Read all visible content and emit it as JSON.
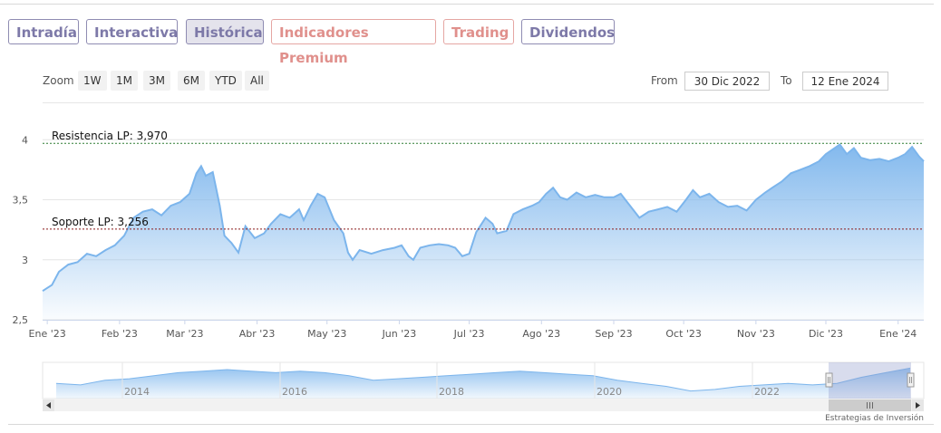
{
  "tabs": [
    {
      "label": "Intradía",
      "style": "normal"
    },
    {
      "label": "Interactiva",
      "style": "normal"
    },
    {
      "label": "Histórica",
      "style": "active"
    },
    {
      "label": "Indicadores Premium",
      "style": "premium"
    },
    {
      "label": "Trading",
      "style": "premium"
    },
    {
      "label": "Dividendos",
      "style": "normal"
    }
  ],
  "zoom": {
    "label": "Zoom",
    "buttons": [
      "1W",
      "1M",
      "3M",
      "6M",
      "YTD",
      "All"
    ]
  },
  "range": {
    "from_label": "From",
    "from_value": "30 Dic 2022",
    "to_label": "To",
    "to_value": "12 Ene 2024"
  },
  "colors": {
    "line": "#7cb5ec",
    "area_top": "#7cb5ec",
    "resistance": "#2e7d32",
    "support": "#8b1a1a",
    "tab_border": "#8f8cb2",
    "tab_premium": "#e0908c"
  },
  "chart_data": {
    "type": "area",
    "title": "",
    "ylim": [
      2.5,
      4.1
    ],
    "y_ticks": [
      "4",
      "3,5",
      "3",
      "2,5"
    ],
    "y_tick_values": [
      4,
      3.5,
      3,
      2.5
    ],
    "x_ticks": [
      "Ene '23",
      "Feb '23",
      "Mar '23",
      "Abr '23",
      "May '23",
      "Jun '23",
      "Jul '23",
      "Ago '23",
      "Sep '23",
      "Oct '23",
      "Nov '23",
      "Dic '23",
      "Ene '24"
    ],
    "x_tick_dates": [
      "2023-01-01",
      "2023-02-01",
      "2023-03-01",
      "2023-04-01",
      "2023-05-01",
      "2023-06-01",
      "2023-07-01",
      "2023-08-01",
      "2023-09-01",
      "2023-10-01",
      "2023-11-01",
      "2023-12-01",
      "2024-01-01"
    ],
    "xlim": [
      "2022-12-30",
      "2024-01-12"
    ],
    "series": [
      {
        "values": [
          [
            "2022-12-30",
            2.74
          ],
          [
            "2023-01-03",
            2.79
          ],
          [
            "2023-01-06",
            2.9
          ],
          [
            "2023-01-10",
            2.96
          ],
          [
            "2023-01-14",
            2.98
          ],
          [
            "2023-01-18",
            3.05
          ],
          [
            "2023-01-22",
            3.03
          ],
          [
            "2023-01-26",
            3.08
          ],
          [
            "2023-01-30",
            3.12
          ],
          [
            "2023-02-03",
            3.2
          ],
          [
            "2023-02-07",
            3.35
          ],
          [
            "2023-02-11",
            3.4
          ],
          [
            "2023-02-15",
            3.42
          ],
          [
            "2023-02-19",
            3.37
          ],
          [
            "2023-02-23",
            3.45
          ],
          [
            "2023-02-27",
            3.48
          ],
          [
            "2023-03-03",
            3.55
          ],
          [
            "2023-03-06",
            3.72
          ],
          [
            "2023-03-08",
            3.78
          ],
          [
            "2023-03-10",
            3.7
          ],
          [
            "2023-03-13",
            3.73
          ],
          [
            "2023-03-16",
            3.45
          ],
          [
            "2023-03-18",
            3.2
          ],
          [
            "2023-03-21",
            3.14
          ],
          [
            "2023-03-24",
            3.06
          ],
          [
            "2023-03-27",
            3.28
          ],
          [
            "2023-03-31",
            3.18
          ],
          [
            "2023-04-04",
            3.22
          ],
          [
            "2023-04-07",
            3.3
          ],
          [
            "2023-04-11",
            3.38
          ],
          [
            "2023-04-15",
            3.35
          ],
          [
            "2023-04-19",
            3.42
          ],
          [
            "2023-04-21",
            3.33
          ],
          [
            "2023-04-24",
            3.45
          ],
          [
            "2023-04-27",
            3.55
          ],
          [
            "2023-04-30",
            3.52
          ],
          [
            "2023-05-04",
            3.33
          ],
          [
            "2023-05-08",
            3.22
          ],
          [
            "2023-05-10",
            3.06
          ],
          [
            "2023-05-12",
            3.0
          ],
          [
            "2023-05-15",
            3.08
          ],
          [
            "2023-05-20",
            3.05
          ],
          [
            "2023-05-25",
            3.08
          ],
          [
            "2023-05-30",
            3.1
          ],
          [
            "2023-06-02",
            3.12
          ],
          [
            "2023-06-05",
            3.03
          ],
          [
            "2023-06-07",
            3.0
          ],
          [
            "2023-06-10",
            3.1
          ],
          [
            "2023-06-14",
            3.12
          ],
          [
            "2023-06-18",
            3.13
          ],
          [
            "2023-06-22",
            3.12
          ],
          [
            "2023-06-25",
            3.1
          ],
          [
            "2023-06-28",
            3.03
          ],
          [
            "2023-07-01",
            3.05
          ],
          [
            "2023-07-04",
            3.23
          ],
          [
            "2023-07-08",
            3.35
          ],
          [
            "2023-07-11",
            3.3
          ],
          [
            "2023-07-13",
            3.22
          ],
          [
            "2023-07-17",
            3.24
          ],
          [
            "2023-07-20",
            3.38
          ],
          [
            "2023-07-24",
            3.42
          ],
          [
            "2023-07-28",
            3.45
          ],
          [
            "2023-07-31",
            3.48
          ],
          [
            "2023-08-03",
            3.55
          ],
          [
            "2023-08-06",
            3.6
          ],
          [
            "2023-08-09",
            3.52
          ],
          [
            "2023-08-12",
            3.5
          ],
          [
            "2023-08-16",
            3.56
          ],
          [
            "2023-08-20",
            3.52
          ],
          [
            "2023-08-24",
            3.54
          ],
          [
            "2023-08-28",
            3.52
          ],
          [
            "2023-09-01",
            3.52
          ],
          [
            "2023-09-04",
            3.55
          ],
          [
            "2023-09-08",
            3.45
          ],
          [
            "2023-09-12",
            3.35
          ],
          [
            "2023-09-16",
            3.4
          ],
          [
            "2023-09-20",
            3.42
          ],
          [
            "2023-09-24",
            3.44
          ],
          [
            "2023-09-28",
            3.4
          ],
          [
            "2023-10-02",
            3.5
          ],
          [
            "2023-10-05",
            3.58
          ],
          [
            "2023-10-08",
            3.52
          ],
          [
            "2023-10-12",
            3.55
          ],
          [
            "2023-10-16",
            3.48
          ],
          [
            "2023-10-20",
            3.44
          ],
          [
            "2023-10-24",
            3.45
          ],
          [
            "2023-10-28",
            3.41
          ],
          [
            "2023-11-01",
            3.5
          ],
          [
            "2023-11-05",
            3.56
          ],
          [
            "2023-11-08",
            3.6
          ],
          [
            "2023-11-12",
            3.65
          ],
          [
            "2023-11-16",
            3.72
          ],
          [
            "2023-11-20",
            3.75
          ],
          [
            "2023-11-24",
            3.78
          ],
          [
            "2023-11-28",
            3.82
          ],
          [
            "2023-12-01",
            3.88
          ],
          [
            "2023-12-04",
            3.92
          ],
          [
            "2023-12-07",
            3.96
          ],
          [
            "2023-12-10",
            3.88
          ],
          [
            "2023-12-13",
            3.93
          ],
          [
            "2023-12-16",
            3.85
          ],
          [
            "2023-12-20",
            3.83
          ],
          [
            "2023-12-24",
            3.84
          ],
          [
            "2023-12-28",
            3.82
          ],
          [
            "2024-01-01",
            3.85
          ],
          [
            "2024-01-04",
            3.88
          ],
          [
            "2024-01-07",
            3.94
          ],
          [
            "2024-01-10",
            3.86
          ],
          [
            "2024-01-12",
            3.82
          ]
        ]
      }
    ],
    "annotations": [
      {
        "label": "Resistencia LP: 3,970",
        "value": 3.97,
        "color": "resistance"
      },
      {
        "label": "Soporte LP: 3,256",
        "value": 3.256,
        "color": "support"
      }
    ],
    "grid": true,
    "legend": "none"
  },
  "navigator": {
    "year_labels": [
      "2014",
      "2016",
      "2018",
      "2020",
      "2022"
    ],
    "series": [
      3.1,
      3.05,
      3.2,
      3.25,
      3.35,
      3.45,
      3.5,
      3.55,
      3.5,
      3.45,
      3.5,
      3.45,
      3.35,
      3.2,
      3.25,
      3.3,
      3.35,
      3.4,
      3.45,
      3.5,
      3.45,
      3.4,
      3.35,
      3.2,
      3.1,
      3.0,
      2.85,
      2.9,
      3.0,
      3.05,
      3.1,
      3.05,
      3.1,
      3.3,
      3.45,
      3.6
    ],
    "credit": "Estrategias de Inversión"
  }
}
